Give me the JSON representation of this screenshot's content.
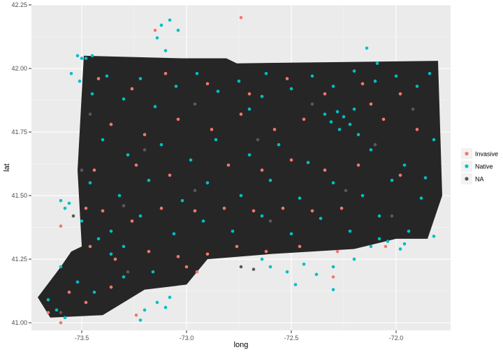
{
  "chart_data": {
    "type": "scatter",
    "title": "",
    "xlabel": "long",
    "ylabel": "lat",
    "xlim": [
      -73.74,
      -71.74
    ],
    "ylim": [
      40.97,
      42.25
    ],
    "x_ticks": [
      -73.5,
      -73.0,
      -72.5,
      -72.0
    ],
    "x_tick_labels": [
      "-73.5",
      "-73.0",
      "-72.5",
      "-72.0"
    ],
    "y_ticks": [
      41.0,
      41.25,
      41.5,
      41.75,
      42.0,
      42.25
    ],
    "y_tick_labels": [
      "41.00",
      "41.25",
      "41.50",
      "41.75",
      "42.00",
      "42.25"
    ],
    "grid": true,
    "legend_position": "right",
    "series": [
      {
        "name": "Invasive",
        "color": "#F8766D"
      },
      {
        "name": "Native",
        "color": "#00BFC4"
      },
      {
        "name": "NA",
        "color": "#595959"
      }
    ],
    "region_outline": {
      "fill": "#262626",
      "lon": [
        -73.49,
        -73.02,
        -72.81,
        -72.76,
        -71.8,
        -71.78,
        -71.85,
        -72.0,
        -72.2,
        -72.6,
        -72.9,
        -73.0,
        -73.2,
        -73.4,
        -73.65,
        -73.71,
        -73.6,
        -73.55,
        -73.5,
        -73.52
      ],
      "lat": [
        42.05,
        42.04,
        42.04,
        42.02,
        42.03,
        41.5,
        41.33,
        41.33,
        41.29,
        41.27,
        41.25,
        41.15,
        41.13,
        41.03,
        41.02,
        41.1,
        41.22,
        41.28,
        41.3,
        41.6
      ]
    },
    "points": [
      {
        "series": "Native",
        "x": -73.52,
        "y": 42.05
      },
      {
        "series": "Native",
        "x": -73.5,
        "y": 42.04
      },
      {
        "series": "Native",
        "x": -73.48,
        "y": 42.04
      },
      {
        "series": "Native",
        "x": -73.51,
        "y": 41.95
      },
      {
        "series": "Native",
        "x": -73.45,
        "y": 41.9
      },
      {
        "series": "Native",
        "x": -73.38,
        "y": 41.97
      },
      {
        "series": "Native",
        "x": -73.3,
        "y": 41.88
      },
      {
        "series": "Native",
        "x": -73.22,
        "y": 41.96
      },
      {
        "series": "Native",
        "x": -73.15,
        "y": 41.85
      },
      {
        "series": "Native",
        "x": -73.05,
        "y": 41.93
      },
      {
        "series": "Native",
        "x": -72.95,
        "y": 41.98
      },
      {
        "series": "Native",
        "x": -72.85,
        "y": 41.91
      },
      {
        "series": "Native",
        "x": -72.75,
        "y": 41.95
      },
      {
        "series": "Native",
        "x": -72.62,
        "y": 41.98
      },
      {
        "series": "Native",
        "x": -72.5,
        "y": 41.92
      },
      {
        "series": "Native",
        "x": -72.4,
        "y": 41.97
      },
      {
        "series": "Native",
        "x": -72.3,
        "y": 41.93
      },
      {
        "series": "Native",
        "x": -72.2,
        "y": 41.99
      },
      {
        "series": "Native",
        "x": -72.1,
        "y": 41.95
      },
      {
        "series": "Native",
        "x": -72.0,
        "y": 41.97
      },
      {
        "series": "Native",
        "x": -71.9,
        "y": 41.93
      },
      {
        "series": "Native",
        "x": -71.84,
        "y": 41.98
      },
      {
        "series": "Native",
        "x": -72.28,
        "y": 41.83
      },
      {
        "series": "Native",
        "x": -72.25,
        "y": 41.81
      },
      {
        "series": "Native",
        "x": -72.31,
        "y": 41.79
      },
      {
        "series": "Native",
        "x": -72.22,
        "y": 41.78
      },
      {
        "series": "Native",
        "x": -72.27,
        "y": 41.76
      },
      {
        "series": "Native",
        "x": -72.2,
        "y": 41.84
      },
      {
        "series": "Native",
        "x": -72.34,
        "y": 41.82
      },
      {
        "series": "Native",
        "x": -72.18,
        "y": 41.74
      },
      {
        "series": "Native",
        "x": -73.4,
        "y": 41.72
      },
      {
        "series": "Native",
        "x": -73.28,
        "y": 41.66
      },
      {
        "series": "Native",
        "x": -73.12,
        "y": 41.7
      },
      {
        "series": "Native",
        "x": -72.98,
        "y": 41.64
      },
      {
        "series": "Native",
        "x": -72.86,
        "y": 41.72
      },
      {
        "series": "Native",
        "x": -72.7,
        "y": 41.66
      },
      {
        "series": "Native",
        "x": -72.56,
        "y": 41.7
      },
      {
        "series": "Native",
        "x": -72.42,
        "y": 41.63
      },
      {
        "series": "Native",
        "x": -72.12,
        "y": 41.68
      },
      {
        "series": "Native",
        "x": -71.96,
        "y": 41.62
      },
      {
        "series": "Native",
        "x": -71.86,
        "y": 41.57
      },
      {
        "series": "Native",
        "x": -71.82,
        "y": 41.72
      },
      {
        "series": "Native",
        "x": -73.46,
        "y": 41.55
      },
      {
        "series": "Native",
        "x": -73.32,
        "y": 41.5
      },
      {
        "series": "Native",
        "x": -73.18,
        "y": 41.56
      },
      {
        "series": "Native",
        "x": -73.02,
        "y": 41.48
      },
      {
        "series": "Native",
        "x": -72.9,
        "y": 41.55
      },
      {
        "series": "Native",
        "x": -72.74,
        "y": 41.5
      },
      {
        "series": "Native",
        "x": -72.6,
        "y": 41.56
      },
      {
        "series": "Native",
        "x": -72.46,
        "y": 41.49
      },
      {
        "series": "Native",
        "x": -72.3,
        "y": 41.55
      },
      {
        "series": "Native",
        "x": -72.16,
        "y": 41.5
      },
      {
        "series": "Native",
        "x": -72.02,
        "y": 41.56
      },
      {
        "series": "Native",
        "x": -71.88,
        "y": 41.49
      },
      {
        "series": "Native",
        "x": -73.5,
        "y": 41.4
      },
      {
        "series": "Native",
        "x": -73.36,
        "y": 41.36
      },
      {
        "series": "Native",
        "x": -73.22,
        "y": 41.42
      },
      {
        "series": "Native",
        "x": -73.06,
        "y": 41.35
      },
      {
        "series": "Native",
        "x": -72.92,
        "y": 41.4
      },
      {
        "series": "Native",
        "x": -72.78,
        "y": 41.36
      },
      {
        "series": "Native",
        "x": -72.64,
        "y": 41.42
      },
      {
        "series": "Native",
        "x": -72.5,
        "y": 41.35
      },
      {
        "series": "Native",
        "x": -72.36,
        "y": 41.41
      },
      {
        "series": "Native",
        "x": -72.22,
        "y": 41.36
      },
      {
        "series": "Native",
        "x": -72.08,
        "y": 41.42
      },
      {
        "series": "Native",
        "x": -71.94,
        "y": 41.36
      },
      {
        "series": "Native",
        "x": -71.82,
        "y": 41.34
      },
      {
        "series": "Native",
        "x": -73.6,
        "y": 41.22
      },
      {
        "series": "Native",
        "x": -73.52,
        "y": 41.16
      },
      {
        "series": "Native",
        "x": -73.44,
        "y": 41.12
      },
      {
        "series": "Native",
        "x": -73.3,
        "y": 41.18
      },
      {
        "series": "Native",
        "x": -73.16,
        "y": 41.2
      },
      {
        "series": "Native",
        "x": -73.62,
        "y": 41.05
      },
      {
        "series": "Native",
        "x": -73.58,
        "y": 41.02
      },
      {
        "series": "Native",
        "x": -73.66,
        "y": 41.09
      },
      {
        "series": "Native",
        "x": -72.6,
        "y": 41.22
      },
      {
        "series": "Native",
        "x": -72.52,
        "y": 41.2
      },
      {
        "series": "Native",
        "x": -72.44,
        "y": 41.23
      },
      {
        "series": "Native",
        "x": -72.38,
        "y": 41.19
      },
      {
        "series": "Native",
        "x": -72.3,
        "y": 41.22
      },
      {
        "series": "Native",
        "x": -72.2,
        "y": 41.25
      },
      {
        "series": "Native",
        "x": -72.12,
        "y": 41.3
      },
      {
        "series": "Native",
        "x": -72.04,
        "y": 41.32
      },
      {
        "series": "Native",
        "x": -71.96,
        "y": 41.31
      },
      {
        "series": "Native",
        "x": -73.56,
        "y": 41.47
      },
      {
        "series": "Native",
        "x": -73.58,
        "y": 41.45
      },
      {
        "series": "Native",
        "x": -73.6,
        "y": 41.48
      },
      {
        "series": "Native",
        "x": -73.12,
        "y": 42.17
      },
      {
        "series": "Native",
        "x": -73.08,
        "y": 42.19
      },
      {
        "series": "Native",
        "x": -73.04,
        "y": 42.15
      },
      {
        "series": "Native",
        "x": -73.14,
        "y": 42.12
      },
      {
        "series": "Native",
        "x": -73.1,
        "y": 42.07
      },
      {
        "series": "Native",
        "x": -72.14,
        "y": 42.08
      },
      {
        "series": "Native",
        "x": -72.09,
        "y": 42.02
      },
      {
        "series": "Native",
        "x": -73.55,
        "y": 41.98
      },
      {
        "series": "Native",
        "x": -73.45,
        "y": 42.05
      },
      {
        "series": "Native",
        "x": -73.2,
        "y": 41.05
      },
      {
        "series": "Native",
        "x": -73.14,
        "y": 41.08
      },
      {
        "series": "Native",
        "x": -73.1,
        "y": 41.06
      },
      {
        "series": "Native",
        "x": -73.22,
        "y": 41.01
      },
      {
        "series": "Native",
        "x": -73.08,
        "y": 41.1
      },
      {
        "series": "Native",
        "x": -72.64,
        "y": 41.25
      },
      {
        "series": "Native",
        "x": -72.48,
        "y": 41.15
      },
      {
        "series": "Native",
        "x": -72.3,
        "y": 41.13
      },
      {
        "series": "Native",
        "x": -72.08,
        "y": 41.33
      },
      {
        "series": "Native",
        "x": -71.98,
        "y": 41.29
      },
      {
        "series": "Native",
        "x": -72.64,
        "y": 41.89
      },
      {
        "series": "Native",
        "x": -72.7,
        "y": 41.84
      },
      {
        "series": "Native",
        "x": -73.3,
        "y": 41.3
      },
      {
        "series": "Native",
        "x": -73.36,
        "y": 41.27
      },
      {
        "series": "Native",
        "x": -73.42,
        "y": 41.33
      },
      {
        "series": "Invasive",
        "x": -73.42,
        "y": 41.96
      },
      {
        "series": "Invasive",
        "x": -73.26,
        "y": 41.92
      },
      {
        "series": "Invasive",
        "x": -73.1,
        "y": 41.98
      },
      {
        "series": "Invasive",
        "x": -72.9,
        "y": 41.94
      },
      {
        "series": "Invasive",
        "x": -72.7,
        "y": 41.9
      },
      {
        "series": "Invasive",
        "x": -72.52,
        "y": 41.96
      },
      {
        "series": "Invasive",
        "x": -72.34,
        "y": 41.9
      },
      {
        "series": "Invasive",
        "x": -72.16,
        "y": 41.94
      },
      {
        "series": "Invasive",
        "x": -71.98,
        "y": 41.9
      },
      {
        "series": "Invasive",
        "x": -73.36,
        "y": 41.78
      },
      {
        "series": "Invasive",
        "x": -73.2,
        "y": 41.74
      },
      {
        "series": "Invasive",
        "x": -73.04,
        "y": 41.8
      },
      {
        "series": "Invasive",
        "x": -72.88,
        "y": 41.76
      },
      {
        "series": "Invasive",
        "x": -72.74,
        "y": 41.82
      },
      {
        "series": "Invasive",
        "x": -72.58,
        "y": 41.76
      },
      {
        "series": "Invasive",
        "x": -72.44,
        "y": 41.8
      },
      {
        "series": "Invasive",
        "x": -72.06,
        "y": 41.8
      },
      {
        "series": "Invasive",
        "x": -71.9,
        "y": 41.76
      },
      {
        "series": "Invasive",
        "x": -73.44,
        "y": 41.6
      },
      {
        "series": "Invasive",
        "x": -73.24,
        "y": 41.62
      },
      {
        "series": "Invasive",
        "x": -73.08,
        "y": 41.58
      },
      {
        "series": "Invasive",
        "x": -72.8,
        "y": 41.62
      },
      {
        "series": "Invasive",
        "x": -72.64,
        "y": 41.6
      },
      {
        "series": "Invasive",
        "x": -72.5,
        "y": 41.64
      },
      {
        "series": "Invasive",
        "x": -72.34,
        "y": 41.6
      },
      {
        "series": "Invasive",
        "x": -72.18,
        "y": 41.62
      },
      {
        "series": "Invasive",
        "x": -71.98,
        "y": 41.58
      },
      {
        "series": "Invasive",
        "x": -73.4,
        "y": 41.44
      },
      {
        "series": "Invasive",
        "x": -73.26,
        "y": 41.4
      },
      {
        "series": "Invasive",
        "x": -73.12,
        "y": 41.45
      },
      {
        "series": "Invasive",
        "x": -72.96,
        "y": 41.44
      },
      {
        "series": "Invasive",
        "x": -72.82,
        "y": 41.45
      },
      {
        "series": "Invasive",
        "x": -72.68,
        "y": 41.44
      },
      {
        "series": "Invasive",
        "x": -72.54,
        "y": 41.45
      },
      {
        "series": "Invasive",
        "x": -72.4,
        "y": 41.44
      },
      {
        "series": "Invasive",
        "x": -72.26,
        "y": 41.45
      },
      {
        "series": "Invasive",
        "x": -73.46,
        "y": 41.3
      },
      {
        "series": "Invasive",
        "x": -73.34,
        "y": 41.25
      },
      {
        "series": "Invasive",
        "x": -73.18,
        "y": 41.28
      },
      {
        "series": "Invasive",
        "x": -73.04,
        "y": 41.26
      },
      {
        "series": "Invasive",
        "x": -72.9,
        "y": 41.27
      },
      {
        "series": "Invasive",
        "x": -72.76,
        "y": 41.3
      },
      {
        "series": "Invasive",
        "x": -72.62,
        "y": 41.28
      },
      {
        "series": "Invasive",
        "x": -72.46,
        "y": 41.3
      },
      {
        "series": "Invasive",
        "x": -72.28,
        "y": 41.28
      },
      {
        "series": "Invasive",
        "x": -73.56,
        "y": 41.12
      },
      {
        "series": "Invasive",
        "x": -73.48,
        "y": 41.08
      },
      {
        "series": "Invasive",
        "x": -73.36,
        "y": 41.14
      },
      {
        "series": "Invasive",
        "x": -73.66,
        "y": 41.04
      },
      {
        "series": "Invasive",
        "x": -73.6,
        "y": 41.0
      },
      {
        "series": "Invasive",
        "x": -73.24,
        "y": 41.03
      },
      {
        "series": "Invasive",
        "x": -72.74,
        "y": 42.2
      },
      {
        "series": "Invasive",
        "x": -73.15,
        "y": 42.15
      },
      {
        "series": "Invasive",
        "x": -73.0,
        "y": 41.22
      },
      {
        "series": "Invasive",
        "x": -72.95,
        "y": 41.2
      },
      {
        "series": "Invasive",
        "x": -72.3,
        "y": 41.18
      },
      {
        "series": "Invasive",
        "x": -72.05,
        "y": 41.3
      },
      {
        "series": "Invasive",
        "x": -73.6,
        "y": 41.38
      },
      {
        "series": "Invasive",
        "x": -73.48,
        "y": 41.45
      },
      {
        "series": "Invasive",
        "x": -72.12,
        "y": 41.86
      },
      {
        "series": "NA",
        "x": -73.46,
        "y": 41.82
      },
      {
        "series": "NA",
        "x": -73.2,
        "y": 41.68
      },
      {
        "series": "NA",
        "x": -72.96,
        "y": 41.86
      },
      {
        "series": "NA",
        "x": -72.66,
        "y": 41.72
      },
      {
        "series": "NA",
        "x": -72.4,
        "y": 41.86
      },
      {
        "series": "NA",
        "x": -72.1,
        "y": 41.7
      },
      {
        "series": "NA",
        "x": -71.92,
        "y": 41.84
      },
      {
        "series": "NA",
        "x": -73.3,
        "y": 41.46
      },
      {
        "series": "NA",
        "x": -72.96,
        "y": 41.52
      },
      {
        "series": "NA",
        "x": -72.6,
        "y": 41.4
      },
      {
        "series": "NA",
        "x": -72.24,
        "y": 41.52
      },
      {
        "series": "NA",
        "x": -73.54,
        "y": 41.42
      },
      {
        "series": "NA",
        "x": -73.5,
        "y": 41.6
      },
      {
        "series": "NA",
        "x": -72.74,
        "y": 41.22
      },
      {
        "series": "NA",
        "x": -72.68,
        "y": 41.21
      },
      {
        "series": "NA",
        "x": -73.28,
        "y": 41.2
      },
      {
        "series": "NA",
        "x": -72.02,
        "y": 41.42
      },
      {
        "series": "NA",
        "x": -73.6,
        "y": 41.04
      }
    ]
  }
}
